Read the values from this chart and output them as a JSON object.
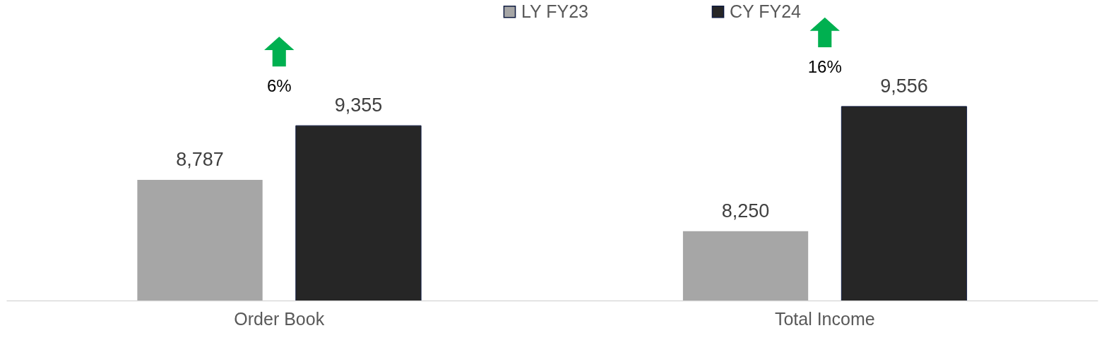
{
  "chart_data": {
    "type": "bar",
    "categories": [
      "Order Book",
      "Total Income"
    ],
    "series": [
      {
        "name": "LY FY23",
        "color": "#a6a6a6",
        "values": [
          8787,
          8250
        ],
        "value_labels": [
          "8,787",
          "8,250"
        ]
      },
      {
        "name": "CY FY24",
        "color": "#262626",
        "values": [
          9355,
          9556
        ],
        "value_labels": [
          "9,355",
          "9,556"
        ]
      }
    ],
    "legend": "top",
    "grid": false,
    "annotations": [
      "6%",
      "16%"
    ]
  }
}
